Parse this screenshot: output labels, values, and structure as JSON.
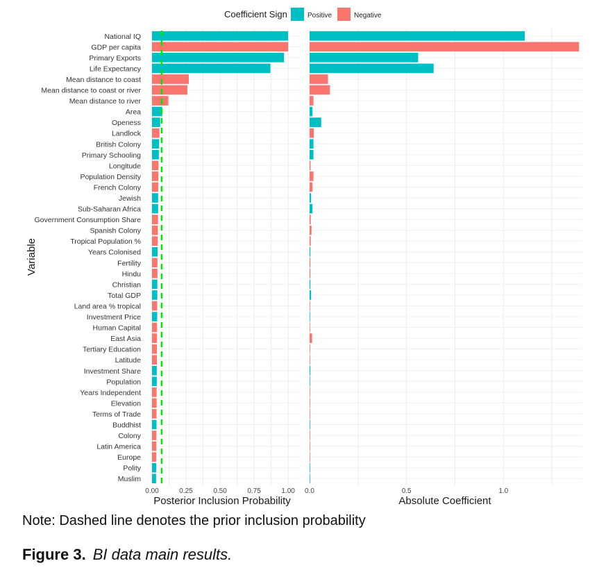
{
  "chart_data": {
    "type": "bar",
    "orientation": "horizontal",
    "legend": {
      "title": "Coefficient Sign",
      "entries": [
        {
          "label": "Positive",
          "color": "#00bfc4"
        },
        {
          "label": "Negative",
          "color": "#f8766d"
        }
      ],
      "placement": "top"
    },
    "ylabel": "Variable",
    "colors": {
      "Positive": "#00bfc4",
      "Negative": "#f8766d",
      "prior_line": "#00e600"
    },
    "categories": [
      "National IQ",
      "GDP per capita",
      "Primary Exports",
      "Life Expectancy",
      "Mean distance to coast",
      "Mean distance to coast or river",
      "Mean distance to river",
      "Area",
      "Openess",
      "Landlock",
      "British Colony",
      "Primary Schooling",
      "Longitude",
      "Population Density",
      "French Colony",
      "Jewish",
      "Sub-Saharan Africa",
      "Government Consumption Share",
      "Spanish Colony",
      "Tropical Population %",
      "Years Colonised",
      "Fertility",
      "Hindu",
      "Christian",
      "Total GDP",
      "Land area % tropical",
      "Investment Price",
      "Human Capital",
      "East Asia",
      "Tertiary Education",
      "Latitude",
      "Investment Share",
      "Population",
      "Years Independent",
      "Elevation",
      "Terms of Trade",
      "Buddhist",
      "Colony",
      "Latin America",
      "Europe",
      "Polity",
      "Muslim"
    ],
    "signs": [
      "Positive",
      "Negative",
      "Positive",
      "Positive",
      "Negative",
      "Negative",
      "Negative",
      "Positive",
      "Positive",
      "Negative",
      "Positive",
      "Positive",
      "Negative",
      "Negative",
      "Negative",
      "Positive",
      "Positive",
      "Negative",
      "Negative",
      "Negative",
      "Positive",
      "Negative",
      "Negative",
      "Positive",
      "Positive",
      "Negative",
      "Positive",
      "Negative",
      "Negative",
      "Negative",
      "Negative",
      "Positive",
      "Positive",
      "Negative",
      "Negative",
      "Negative",
      "Positive",
      "Negative",
      "Negative",
      "Negative",
      "Positive",
      "Positive"
    ],
    "panels": [
      {
        "xlabel": "Posterior Inclusion Probability",
        "xlim": [
          0,
          1.03
        ],
        "xticks": [
          0,
          0.25,
          0.5,
          0.75,
          1.0
        ],
        "xtick_labels": [
          "0.00",
          "0.25",
          "0.50",
          "0.75",
          "1.00"
        ],
        "prior_line": 0.071,
        "values": [
          1.0,
          1.0,
          0.97,
          0.87,
          0.27,
          0.26,
          0.12,
          0.075,
          0.06,
          0.055,
          0.052,
          0.05,
          0.048,
          0.047,
          0.046,
          0.045,
          0.045,
          0.044,
          0.043,
          0.042,
          0.041,
          0.04,
          0.04,
          0.039,
          0.039,
          0.038,
          0.038,
          0.037,
          0.037,
          0.036,
          0.036,
          0.035,
          0.035,
          0.034,
          0.034,
          0.033,
          0.033,
          0.032,
          0.032,
          0.031,
          0.031,
          0.03
        ]
      },
      {
        "xlabel": "Absolute Coefficient",
        "xlim": [
          0,
          1.4
        ],
        "xticks": [
          0,
          0.5,
          1.0
        ],
        "xtick_labels": [
          "0.0",
          "0.5",
          "1.0"
        ],
        "values": [
          1.11,
          1.39,
          0.56,
          0.64,
          0.095,
          0.105,
          0.02,
          0.015,
          0.06,
          0.022,
          0.02,
          0.02,
          0.005,
          0.02,
          0.015,
          0.008,
          0.015,
          0.006,
          0.01,
          0.006,
          0.004,
          0.004,
          0.004,
          0.004,
          0.008,
          0.003,
          0.003,
          0.002,
          0.013,
          0.002,
          0.002,
          0.004,
          0.002,
          0.002,
          0.002,
          0.002,
          0.002,
          0.002,
          0.002,
          0.002,
          0.002,
          0.002
        ]
      }
    ]
  },
  "note": "Note: Dashed line denotes the prior inclusion probability",
  "figure": {
    "number": "Figure 3.",
    "title": "BI data main results."
  }
}
